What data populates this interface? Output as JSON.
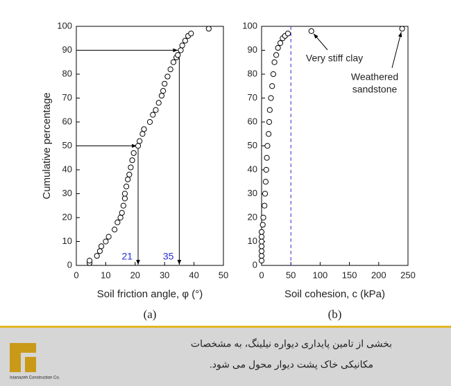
{
  "chart_data": [
    {
      "type": "scatter",
      "label": "(a)",
      "xlabel": "Soil friction angle, φ (°)",
      "ylabel": "Cumulative percentage",
      "xlim": [
        0,
        50
      ],
      "xticks": [
        0,
        10,
        20,
        30,
        40,
        50
      ],
      "ylim": [
        0,
        100
      ],
      "yticks": [
        0,
        10,
        20,
        30,
        40,
        50,
        60,
        70,
        80,
        90,
        100
      ],
      "x": [
        4.5,
        4.5,
        7,
        8,
        8.5,
        10,
        11,
        13,
        14,
        15,
        15.5,
        16,
        16.5,
        16.5,
        17,
        17.5,
        18,
        18.5,
        19,
        19.5,
        21,
        21.5,
        22.5,
        23,
        25,
        26,
        27,
        28,
        29,
        29.5,
        30,
        31,
        32,
        33,
        34,
        34.5,
        35.5,
        36,
        37,
        38,
        39,
        45
      ],
      "series": [
        {
          "color": "#000000",
          "values": [
            1,
            2,
            4,
            6,
            8,
            10,
            12,
            15,
            18,
            20,
            22,
            25,
            28,
            30,
            33,
            36,
            38,
            41,
            44,
            47,
            50,
            52,
            55,
            57,
            60,
            63,
            65,
            68,
            71,
            73,
            76,
            79,
            82,
            85,
            87,
            88,
            90,
            92,
            94,
            96,
            97,
            99
          ]
        }
      ],
      "guides": [
        {
          "x": 21,
          "y": 50
        },
        {
          "x": 35,
          "y": 90
        }
      ],
      "guide_color": "#2b2bd6"
    },
    {
      "type": "scatter",
      "label": "(b)",
      "xlabel": "Soil cohesion, c (kPa)",
      "xlim": [
        0,
        250
      ],
      "xticks": [
        0,
        50,
        100,
        150,
        200,
        250
      ],
      "ylim": [
        0,
        100
      ],
      "yticks": [
        0,
        10,
        20,
        30,
        40,
        50,
        60,
        70,
        80,
        90,
        100
      ],
      "x": [
        0,
        0,
        0,
        0,
        0,
        0,
        0,
        2,
        3,
        5,
        6,
        7,
        8,
        9,
        10,
        12,
        13,
        14,
        16,
        18,
        20,
        22,
        25,
        28,
        32,
        36,
        40,
        45,
        85,
        240
      ],
      "series": [
        {
          "color": "#000000",
          "values": [
            2,
            4,
            6,
            8,
            10,
            12,
            14,
            17,
            20,
            25,
            30,
            35,
            40,
            45,
            50,
            55,
            60,
            65,
            70,
            75,
            80,
            85,
            88,
            91,
            93,
            95,
            96,
            97,
            98,
            99
          ]
        }
      ],
      "reference_x": 50,
      "guide_color": "#2b2bd6",
      "annotations": [
        {
          "text": [
            "Very stiff clay"
          ],
          "x": 85,
          "y": 98
        },
        {
          "text": [
            "Weathered",
            "sandstone"
          ],
          "x": 240,
          "y": 99
        }
      ]
    }
  ],
  "footer": {
    "lines": [
      "بخشی از تامین پایداری دیواره نیلینگ، به مشخصات",
      "مکانیکی خاک پشت دیوار محول می شود."
    ],
    "logo_text": "Istanazeh Construction Co."
  }
}
